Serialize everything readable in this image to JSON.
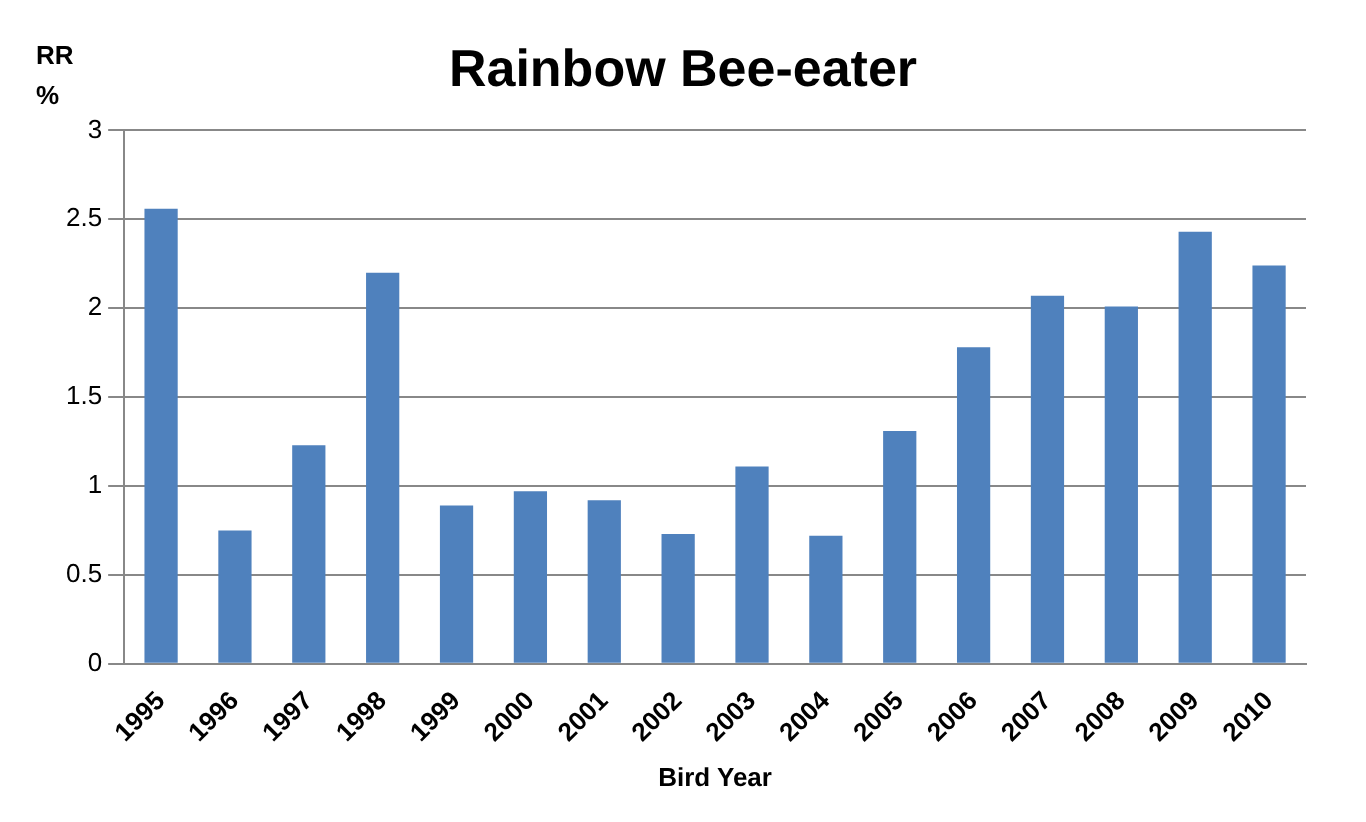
{
  "chart_data": {
    "type": "bar",
    "title": "Rainbow Bee-eater",
    "xlabel": "Bird Year",
    "ylabel": "RR %",
    "categories": [
      "1995",
      "1996",
      "1997",
      "1998",
      "1999",
      "2000",
      "2001",
      "2002",
      "2003",
      "2004",
      "2005",
      "2006",
      "2007",
      "2008",
      "2009",
      "2010"
    ],
    "values": [
      2.56,
      0.75,
      1.23,
      2.2,
      0.89,
      0.97,
      0.92,
      0.73,
      1.11,
      0.72,
      1.31,
      1.78,
      2.07,
      2.01,
      2.43,
      2.24
    ],
    "color": "#4f81bd",
    "ylim": [
      0,
      3
    ],
    "yticks": [
      0,
      0.5,
      1,
      1.5,
      2,
      2.5,
      3
    ],
    "grid": "y"
  }
}
